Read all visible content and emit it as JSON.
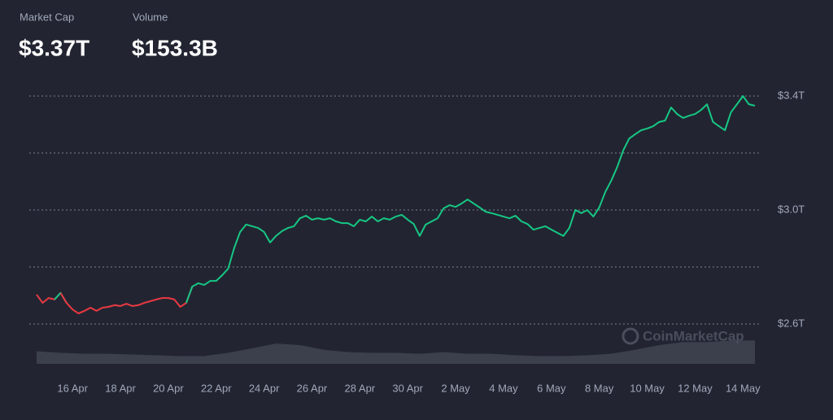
{
  "header": {
    "stats": [
      {
        "label": "Market Cap",
        "value": "$3.37T"
      },
      {
        "label": "Volume",
        "value": "$153.3B"
      }
    ]
  },
  "chart_data": {
    "type": "line",
    "watermark": "CoinMarketCap",
    "series": [
      {
        "name": "Market Cap",
        "up_color": "#16c784",
        "down_color": "#ea3943",
        "values": [
          2.703,
          2.674,
          2.691,
          2.686,
          2.709,
          2.674,
          2.651,
          2.637,
          2.646,
          2.657,
          2.646,
          2.657,
          2.66,
          2.666,
          2.663,
          2.671,
          2.663,
          2.666,
          2.674,
          2.68,
          2.686,
          2.691,
          2.691,
          2.686,
          2.66,
          2.674,
          2.731,
          2.743,
          2.737,
          2.751,
          2.751,
          2.771,
          2.794,
          2.866,
          2.923,
          2.949,
          2.943,
          2.937,
          2.923,
          2.886,
          2.909,
          2.926,
          2.937,
          2.943,
          2.971,
          2.98,
          2.966,
          2.971,
          2.966,
          2.971,
          2.96,
          2.954,
          2.954,
          2.943,
          2.966,
          2.96,
          2.977,
          2.96,
          2.971,
          2.966,
          2.977,
          2.983,
          2.966,
          2.951,
          2.909,
          2.949,
          2.96,
          2.971,
          3.006,
          3.017,
          3.011,
          3.023,
          3.037,
          3.023,
          3.009,
          2.994,
          2.989,
          2.983,
          2.977,
          2.971,
          2.98,
          2.96,
          2.951,
          2.931,
          2.937,
          2.943,
          2.931,
          2.92,
          2.909,
          2.937,
          3.0,
          2.989,
          3.0,
          2.977,
          3.009,
          3.063,
          3.103,
          3.151,
          3.209,
          3.251,
          3.266,
          3.28,
          3.286,
          3.294,
          3.309,
          3.314,
          3.36,
          3.337,
          3.323,
          3.331,
          3.337,
          3.351,
          3.371,
          3.309,
          3.294,
          3.28,
          3.343,
          3.371,
          3.4,
          3.371,
          3.366
        ]
      }
    ],
    "volume": {
      "name": "Volume",
      "color": "#3c404d",
      "values": [
        82,
        72,
        66,
        66,
        61,
        56,
        51,
        51,
        72,
        102,
        133,
        123,
        92,
        77,
        72,
        72,
        66,
        77,
        66,
        66,
        56,
        51,
        51,
        56,
        66,
        92,
        123,
        143,
        143,
        153,
        153.3
      ],
      "ylim": [
        0,
        160
      ]
    },
    "xlim": [
      0,
      120
    ],
    "xticks": [
      {
        "value": 6,
        "label": "16 Apr"
      },
      {
        "value": 14,
        "label": "18 Apr"
      },
      {
        "value": 22,
        "label": "20 Apr"
      },
      {
        "value": 30,
        "label": "22 Apr"
      },
      {
        "value": 38,
        "label": "24 Apr"
      },
      {
        "value": 46,
        "label": "26 Apr"
      },
      {
        "value": 54,
        "label": "28 Apr"
      },
      {
        "value": 62,
        "label": "30 Apr"
      },
      {
        "value": 70,
        "label": "2 May"
      },
      {
        "value": 78,
        "label": "4 May"
      },
      {
        "value": 86,
        "label": "6 May"
      },
      {
        "value": 94,
        "label": "8 May"
      },
      {
        "value": 102,
        "label": "10 May"
      },
      {
        "value": 110,
        "label": "12 May"
      },
      {
        "value": 118,
        "label": "14 May"
      }
    ],
    "ylim": [
      2.6,
      3.4
    ],
    "yticks": [
      {
        "value": 2.6,
        "label": "$2.6T"
      },
      {
        "value": 3.0,
        "label": "$3.0T"
      },
      {
        "value": 3.4,
        "label": "$3.4T"
      }
    ],
    "gridlines": [
      2.6,
      2.8,
      3.0,
      3.2,
      3.4
    ],
    "grid": true
  }
}
